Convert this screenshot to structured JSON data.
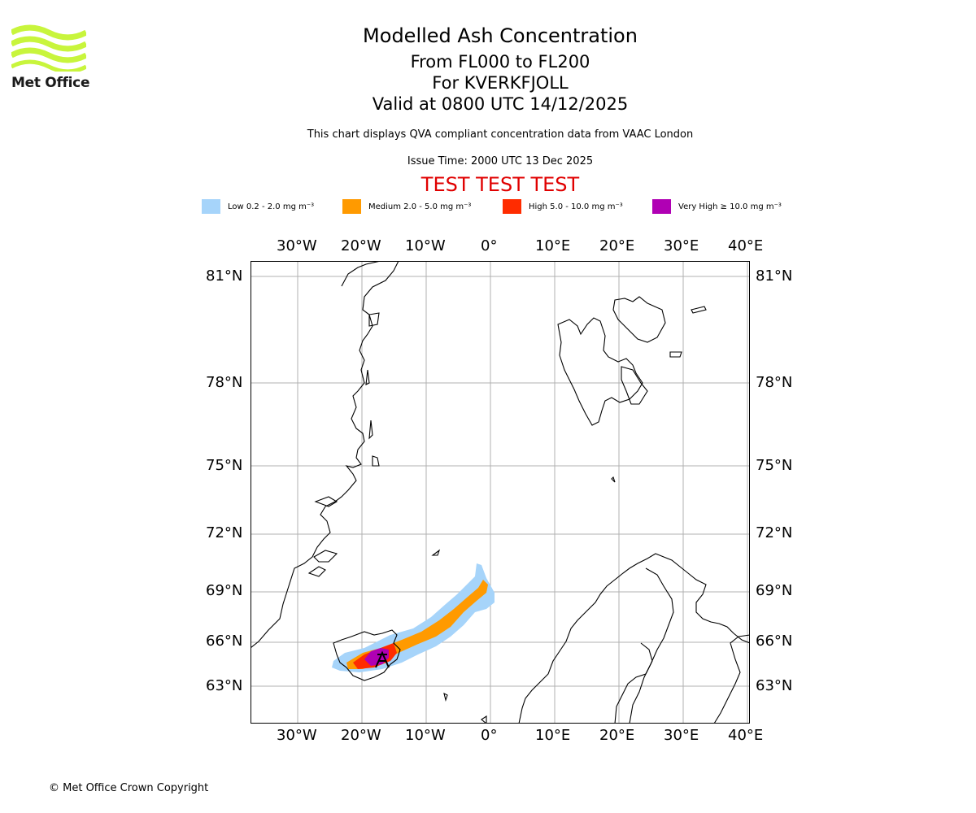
{
  "branding": {
    "logo_text": "Met Office",
    "logo_color": "#c8f53c",
    "copyright": "© Met Office Crown Copyright"
  },
  "header": {
    "title": "Modelled Ash Concentration",
    "levels": "From FL000 to FL200",
    "volcano": "For KVERKFJOLL",
    "valid": "Valid at 0800 UTC 14/12/2025",
    "description": "This chart displays QVA compliant concentration data from VAAC London",
    "issue_time": "Issue Time: 2000 UTC 13 Dec 2025",
    "test_banner": "TEST TEST TEST"
  },
  "legend": [
    {
      "label": "Low 0.2 - 2.0 mg m⁻³",
      "color": "#a6d4fa"
    },
    {
      "label": "Medium 2.0 - 5.0 mg m⁻³",
      "color": "#ff9a00"
    },
    {
      "label": "High 5.0 - 10.0 mg m⁻³",
      "color": "#ff2c00"
    },
    {
      "label": "Very High ≥ 10.0 mg m⁻³",
      "color": "#b000b4"
    }
  ],
  "map": {
    "lon_labels": [
      "30°W",
      "20°W",
      "10°W",
      "0°",
      "10°E",
      "20°E",
      "30°E",
      "40°E"
    ],
    "lat_labels": [
      "81°N",
      "78°N",
      "75°N",
      "72°N",
      "69°N",
      "66°N",
      "63°N"
    ],
    "grid_color": "#b0b0b0",
    "coast_color": "#000000",
    "volcano_marker": "volcano-icon"
  }
}
